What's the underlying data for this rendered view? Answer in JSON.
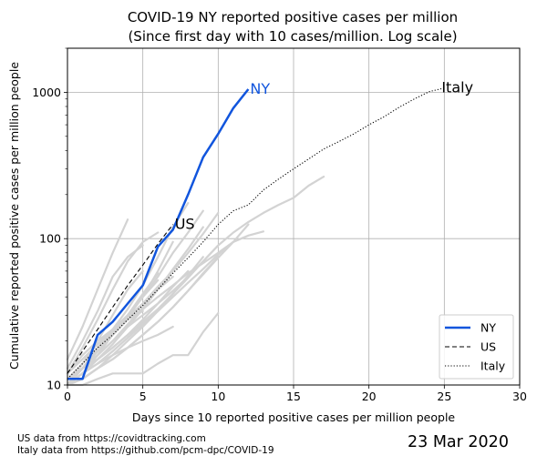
{
  "chart_data": {
    "type": "line",
    "title": "COVID-19 NY reported positive cases per million",
    "subtitle": "(Since first day with 10 cases/million. Log scale)",
    "xlabel": "Days since 10 reported positive cases per million people",
    "ylabel": "Cumulative reported positive cases per million people",
    "xlim": [
      0,
      30
    ],
    "ylim": [
      10,
      2000
    ],
    "yscale": "log",
    "grid": true,
    "legend_position": "lower right",
    "x_ticks": [
      "0",
      "5",
      "10",
      "15",
      "20",
      "25",
      "30"
    ],
    "y_ticks": [
      "10",
      "100",
      "1000"
    ],
    "series": [
      {
        "name": "NY",
        "label": "NY",
        "color": "#1155dd",
        "style": "solid",
        "x": [
          0,
          1,
          2,
          3,
          4,
          5,
          6,
          7,
          8,
          9,
          10,
          11,
          12
        ],
        "y": [
          11,
          11,
          22,
          27,
          36,
          48,
          88,
          115,
          200,
          360,
          520,
          780,
          1050
        ]
      },
      {
        "name": "US",
        "label": "US",
        "color": "#000000",
        "style": "dashed",
        "x": [
          0,
          1,
          2,
          3,
          4,
          5,
          6,
          7
        ],
        "y": [
          12,
          17,
          24,
          34,
          48,
          66,
          92,
          125
        ]
      },
      {
        "name": "Italy",
        "label": "Italy",
        "color": "#000000",
        "style": "dotted",
        "x": [
          0,
          1,
          2,
          3,
          4,
          5,
          6,
          7,
          8,
          9,
          10,
          11,
          12,
          13,
          14,
          15,
          16,
          17,
          18,
          19,
          20,
          21,
          22,
          23,
          24,
          25
        ],
        "y": [
          11,
          14,
          18,
          22,
          28,
          35,
          45,
          58,
          74,
          95,
          125,
          155,
          170,
          215,
          255,
          300,
          350,
          410,
          460,
          520,
          600,
          680,
          790,
          900,
          1010,
          1070
        ]
      }
    ],
    "other_states_color": "#d3d3d3",
    "other_states": [
      {
        "x": [
          0,
          1,
          2,
          3,
          4,
          5,
          6,
          7,
          8
        ],
        "y": [
          10,
          13,
          18,
          24,
          33,
          48,
          75,
          120,
          175
        ]
      },
      {
        "x": [
          0,
          1,
          2,
          3,
          4,
          5,
          6,
          7,
          8,
          9,
          10,
          11,
          12,
          13
        ],
        "y": [
          10,
          13,
          17,
          22,
          28,
          33,
          40,
          48,
          58,
          68,
          80,
          95,
          105,
          112
        ]
      },
      {
        "x": [
          0,
          1,
          2,
          3,
          4,
          5,
          6,
          7,
          8,
          9,
          10,
          11,
          12,
          13,
          14,
          15,
          16,
          17
        ],
        "y": [
          10,
          12,
          15,
          18,
          22,
          27,
          33,
          42,
          55,
          70,
          90,
          110,
          130,
          150,
          170,
          190,
          230,
          265
        ]
      },
      {
        "x": [
          0,
          1,
          2,
          3,
          4,
          5,
          6
        ],
        "y": [
          12,
          18,
          28,
          45,
          70,
          95,
          110
        ]
      },
      {
        "x": [
          0,
          1,
          2,
          3,
          4,
          5,
          6,
          7
        ],
        "y": [
          12,
          16,
          20,
          24,
          29,
          36,
          45,
          55
        ]
      },
      {
        "x": [
          0,
          1,
          2,
          3,
          4,
          5,
          6,
          7,
          8
        ],
        "y": [
          10,
          12,
          15,
          18,
          22,
          28,
          36,
          47,
          60
        ]
      },
      {
        "x": [
          0,
          1,
          2,
          3,
          4
        ],
        "y": [
          15,
          25,
          45,
          80,
          135
        ]
      },
      {
        "x": [
          0,
          1,
          2,
          3,
          4,
          5,
          6
        ],
        "y": [
          10,
          12,
          16,
          22,
          30,
          40,
          52
        ]
      },
      {
        "x": [
          0,
          1,
          2,
          3,
          4,
          5,
          6,
          7,
          8,
          9,
          10,
          11
        ],
        "y": [
          10,
          12,
          14,
          17,
          21,
          26,
          32,
          40,
          50,
          62,
          78,
          95
        ]
      },
      {
        "x": [
          0,
          1,
          2,
          3,
          4,
          5
        ],
        "y": [
          10,
          14,
          20,
          30,
          45,
          60
        ]
      },
      {
        "x": [
          0,
          1,
          2,
          3,
          4,
          5,
          6,
          7,
          8,
          9,
          10
        ],
        "y": [
          10,
          11,
          13,
          15,
          18,
          22,
          27,
          34,
          44,
          58,
          75
        ]
      },
      {
        "x": [
          0,
          1,
          2,
          3,
          4,
          5,
          6,
          7
        ],
        "y": [
          10,
          13,
          17,
          22,
          28,
          36,
          47,
          60
        ]
      },
      {
        "x": [
          0,
          1,
          2,
          3,
          4,
          5,
          6,
          7,
          8,
          9
        ],
        "y": [
          10,
          12,
          15,
          19,
          25,
          33,
          45,
          62,
          85,
          120
        ]
      },
      {
        "x": [
          0,
          1,
          2,
          3,
          4,
          5,
          6,
          7
        ],
        "y": [
          10,
          12,
          14,
          16,
          18,
          20,
          22,
          25
        ]
      },
      {
        "x": [
          0,
          1,
          2,
          3,
          4,
          5
        ],
        "y": [
          13,
          20,
          32,
          55,
          75,
          90
        ]
      },
      {
        "x": [
          0,
          1,
          2,
          3,
          4,
          5,
          6,
          7,
          8,
          9,
          10
        ],
        "y": [
          10,
          10,
          11,
          12,
          12,
          12,
          14,
          16,
          16,
          23,
          31
        ]
      },
      {
        "x": [
          0,
          1,
          2,
          3,
          4,
          5,
          6,
          7,
          8
        ],
        "y": [
          10,
          13,
          16,
          20,
          25,
          30,
          36,
          44,
          55
        ]
      },
      {
        "x": [
          0,
          1,
          2,
          3,
          4,
          5,
          6,
          7,
          8,
          9,
          10,
          11,
          12
        ],
        "y": [
          10,
          11,
          13,
          15,
          18,
          22,
          27,
          34,
          44,
          57,
          74,
          95,
          125
        ]
      },
      {
        "x": [
          0,
          1,
          2,
          3,
          4,
          5,
          6,
          7
        ],
        "y": [
          12,
          15,
          19,
          24,
          30,
          40,
          60,
          95
        ]
      },
      {
        "x": [
          0,
          1,
          2,
          3,
          4,
          5,
          6
        ],
        "y": [
          11,
          14,
          18,
          23,
          30,
          42,
          58
        ]
      },
      {
        "x": [
          0,
          1,
          2,
          3,
          4,
          5
        ],
        "y": [
          10,
          13,
          17,
          23,
          28,
          32
        ]
      },
      {
        "x": [
          0,
          1,
          2,
          3,
          4,
          5,
          6,
          7,
          8,
          9
        ],
        "y": [
          10,
          13,
          17,
          22,
          29,
          40,
          55,
          80,
          110,
          155
        ]
      },
      {
        "x": [
          0,
          1,
          2,
          3,
          4,
          5,
          6,
          7,
          8,
          9,
          10
        ],
        "y": [
          10,
          12,
          14,
          17,
          21,
          26,
          33,
          42,
          54,
          70,
          90
        ]
      },
      {
        "x": [
          0,
          1,
          2,
          3,
          4,
          5
        ],
        "y": [
          11,
          13,
          15,
          18,
          22,
          26
        ]
      },
      {
        "x": [
          0,
          1,
          2,
          3,
          4,
          5,
          6,
          7,
          8,
          9
        ],
        "y": [
          10,
          11,
          13,
          16,
          20,
          25,
          32,
          42,
          56,
          75
        ]
      },
      {
        "x": [
          0,
          1,
          2,
          3,
          4,
          5,
          6,
          7,
          8,
          9,
          10
        ],
        "y": [
          10,
          13,
          16,
          20,
          26,
          34,
          45,
          60,
          80,
          108,
          150
        ]
      }
    ]
  },
  "source_notes": [
    "US data from https://covidtracking.com",
    "Italy data from https://github.com/pcm-dpc/COVID-19"
  ],
  "date_stamp": "23 Mar 2020"
}
